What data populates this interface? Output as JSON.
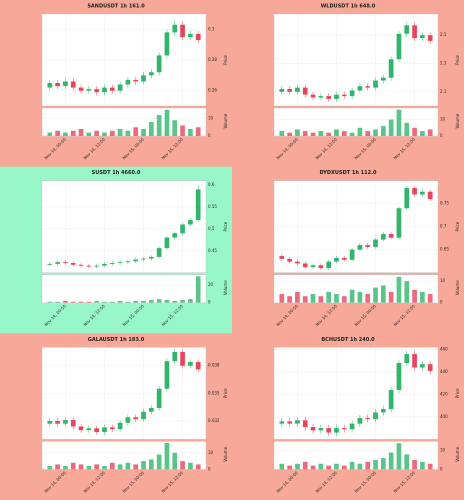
{
  "chart_data": [
    {
      "type": "candlestick",
      "title": "SANDUSDT 1h 161.0",
      "background": "#f7a898",
      "up_color": "#2fb66b",
      "down_color": "#e8455c",
      "ylabel": "Price",
      "y2label": "Volume",
      "open": [
        0.262,
        0.265,
        0.263,
        0.266,
        0.262,
        0.26,
        0.261,
        0.259,
        0.262,
        0.26,
        0.264,
        0.267,
        0.266,
        0.27,
        0.272,
        0.283,
        0.298,
        0.303,
        0.295,
        0.297
      ],
      "high": [
        0.267,
        0.267,
        0.268,
        0.268,
        0.264,
        0.263,
        0.263,
        0.264,
        0.264,
        0.266,
        0.269,
        0.269,
        0.272,
        0.274,
        0.285,
        0.3,
        0.306,
        0.305,
        0.299,
        0.299
      ],
      "low": [
        0.26,
        0.261,
        0.261,
        0.26,
        0.258,
        0.258,
        0.257,
        0.257,
        0.258,
        0.258,
        0.262,
        0.264,
        0.264,
        0.268,
        0.27,
        0.281,
        0.296,
        0.293,
        0.293,
        0.291
      ],
      "close": [
        0.265,
        0.263,
        0.266,
        0.262,
        0.26,
        0.261,
        0.259,
        0.262,
        0.26,
        0.264,
        0.267,
        0.266,
        0.27,
        0.272,
        0.283,
        0.298,
        0.303,
        0.295,
        0.297,
        0.293
      ],
      "volume": [
        2,
        3,
        2,
        3,
        4,
        2,
        3,
        2,
        3,
        4,
        3,
        5,
        4,
        8,
        12,
        15,
        9,
        6,
        4,
        5
      ],
      "xlim": [
        -1,
        20
      ],
      "xticks": [
        {
          "value": 2,
          "label": "Nov 14, 00:00"
        },
        {
          "value": 7,
          "label": "Nov 14, 12:00"
        },
        {
          "value": 12,
          "label": "Nov 15, 00:00"
        },
        {
          "value": 17,
          "label": "Nov 15, 12:00"
        }
      ],
      "ylim": [
        0.25,
        0.31
      ],
      "yticks": [
        0.26,
        0.28,
        0.3
      ],
      "y2lim": [
        0,
        16
      ],
      "y2ticks": [
        0,
        10
      ]
    },
    {
      "type": "candlestick",
      "title": "WLDUSDT 1h 648.0",
      "background": "#f7a898",
      "up_color": "#2fb66b",
      "down_color": "#e8455c",
      "ylabel": "Price",
      "y2label": "Volume",
      "open": [
        2.1,
        2.12,
        2.1,
        2.13,
        2.08,
        2.06,
        2.07,
        2.05,
        2.08,
        2.07,
        2.11,
        2.14,
        2.13,
        2.18,
        2.2,
        2.33,
        2.51,
        2.57,
        2.48,
        2.5
      ],
      "high": [
        2.14,
        2.14,
        2.15,
        2.15,
        2.1,
        2.09,
        2.09,
        2.1,
        2.1,
        2.13,
        2.16,
        2.16,
        2.2,
        2.22,
        2.35,
        2.53,
        2.59,
        2.59,
        2.52,
        2.52
      ],
      "low": [
        2.08,
        2.08,
        2.08,
        2.06,
        2.04,
        2.04,
        2.03,
        2.03,
        2.05,
        2.05,
        2.09,
        2.11,
        2.11,
        2.16,
        2.18,
        2.31,
        2.49,
        2.46,
        2.46,
        2.44
      ],
      "close": [
        2.12,
        2.1,
        2.13,
        2.08,
        2.06,
        2.07,
        2.05,
        2.08,
        2.07,
        2.11,
        2.14,
        2.13,
        2.18,
        2.2,
        2.33,
        2.51,
        2.57,
        2.48,
        2.5,
        2.46
      ],
      "volume": [
        3,
        2,
        4,
        3,
        2,
        3,
        2,
        4,
        3,
        2,
        5,
        3,
        4,
        6,
        10,
        16,
        8,
        5,
        3,
        4
      ],
      "xlim": [
        -1,
        20
      ],
      "xticks": [
        {
          "value": 2,
          "label": "Nov 14, 00:00"
        },
        {
          "value": 7,
          "label": "Nov 14, 12:00"
        },
        {
          "value": 12,
          "label": "Nov 15, 00:00"
        },
        {
          "value": 17,
          "label": "Nov 15, 12:00"
        }
      ],
      "ylim": [
        2.0,
        2.65
      ],
      "yticks": [
        2.1,
        2.3,
        2.5
      ],
      "y2lim": [
        0,
        17
      ],
      "y2ticks": [
        0,
        10
      ]
    },
    {
      "type": "candlestick",
      "title": "SUSDT 1h 4660.0",
      "background": "#98f7c9",
      "up_color": "#2fb66b",
      "down_color": "#e8455c",
      "ylabel": "Price",
      "y2label": "Volume",
      "open": [
        0.418,
        0.42,
        0.424,
        0.422,
        0.418,
        0.416,
        0.414,
        0.416,
        0.42,
        0.422,
        0.424,
        0.426,
        0.43,
        0.432,
        0.436,
        0.456,
        0.48,
        0.49,
        0.51,
        0.52
      ],
      "high": [
        0.424,
        0.428,
        0.428,
        0.426,
        0.422,
        0.42,
        0.42,
        0.424,
        0.426,
        0.428,
        0.43,
        0.434,
        0.436,
        0.44,
        0.46,
        0.484,
        0.494,
        0.514,
        0.524,
        0.6
      ],
      "low": [
        0.414,
        0.416,
        0.418,
        0.414,
        0.412,
        0.41,
        0.41,
        0.412,
        0.416,
        0.418,
        0.42,
        0.422,
        0.426,
        0.428,
        0.432,
        0.452,
        0.476,
        0.486,
        0.506,
        0.516
      ],
      "close": [
        0.42,
        0.424,
        0.422,
        0.418,
        0.416,
        0.414,
        0.416,
        0.42,
        0.422,
        0.424,
        0.426,
        0.43,
        0.432,
        0.436,
        0.456,
        0.48,
        0.49,
        0.51,
        0.52,
        0.59
      ],
      "volume": [
        1,
        1,
        2,
        1,
        1,
        1,
        2,
        1,
        1,
        2,
        1,
        2,
        2,
        3,
        4,
        3,
        2,
        3,
        4,
        30
      ],
      "xlim": [
        -1,
        20
      ],
      "xticks": [
        {
          "value": 2,
          "label": "Nov 14, 00:00"
        },
        {
          "value": 7,
          "label": "Nov 14, 12:00"
        },
        {
          "value": 12,
          "label": "Nov 15, 00:00"
        },
        {
          "value": 17,
          "label": "Nov 15, 12:00"
        }
      ],
      "ylim": [
        0.4,
        0.61
      ],
      "yticks": [
        0.45,
        0.5,
        0.55,
        0.6
      ],
      "y2lim": [
        0,
        32
      ],
      "y2ticks": [
        0,
        20
      ]
    },
    {
      "type": "candlestick",
      "title": "DYDXUSDT 1h 112.0",
      "background": "#f7a898",
      "up_color": "#2fb66b",
      "down_color": "#e8455c",
      "ylabel": "Price",
      "y2label": "Volume",
      "open": [
        0.636,
        0.63,
        0.624,
        0.62,
        0.612,
        0.616,
        0.61,
        0.624,
        0.632,
        0.628,
        0.65,
        0.66,
        0.656,
        0.672,
        0.684,
        0.676,
        0.74,
        0.784,
        0.77,
        0.776
      ],
      "high": [
        0.64,
        0.634,
        0.628,
        0.624,
        0.62,
        0.62,
        0.628,
        0.636,
        0.636,
        0.654,
        0.664,
        0.664,
        0.676,
        0.688,
        0.688,
        0.744,
        0.788,
        0.788,
        0.78,
        0.78
      ],
      "low": [
        0.626,
        0.62,
        0.616,
        0.608,
        0.608,
        0.606,
        0.606,
        0.62,
        0.624,
        0.624,
        0.646,
        0.652,
        0.652,
        0.668,
        0.672,
        0.672,
        0.736,
        0.766,
        0.766,
        0.756
      ],
      "close": [
        0.63,
        0.624,
        0.62,
        0.612,
        0.616,
        0.61,
        0.624,
        0.632,
        0.628,
        0.65,
        0.66,
        0.656,
        0.672,
        0.684,
        0.676,
        0.74,
        0.784,
        0.77,
        0.776,
        0.76
      ],
      "volume": [
        4,
        3,
        5,
        3,
        4,
        3,
        5,
        4,
        3,
        6,
        5,
        4,
        7,
        8,
        5,
        12,
        10,
        6,
        5,
        4
      ],
      "xlim": [
        -1,
        20
      ],
      "xticks": [
        {
          "value": 2,
          "label": "Nov 14, 00:00"
        },
        {
          "value": 7,
          "label": "Nov 14, 12:00"
        },
        {
          "value": 12,
          "label": "Nov 15, 00:00"
        },
        {
          "value": 17,
          "label": "Nov 15, 12:00"
        }
      ],
      "ylim": [
        0.6,
        0.8
      ],
      "yticks": [
        0.65,
        0.7,
        0.75
      ],
      "y2lim": [
        0,
        13
      ],
      "y2ticks": [
        0,
        10
      ]
    },
    {
      "type": "candlestick",
      "title": "GALAUSDT 1h 183.0",
      "background": "#f7a898",
      "up_color": "#2fb66b",
      "down_color": "#e8455c",
      "ylabel": "Price",
      "y2label": "Volume",
      "open": [
        0.0317,
        0.032,
        0.0317,
        0.0321,
        0.0314,
        0.031,
        0.0312,
        0.0308,
        0.0313,
        0.0311,
        0.0318,
        0.0324,
        0.0322,
        0.033,
        0.0334,
        0.0355,
        0.0385,
        0.0395,
        0.038,
        0.0384
      ],
      "high": [
        0.0323,
        0.0323,
        0.0324,
        0.0324,
        0.0317,
        0.0315,
        0.0315,
        0.0316,
        0.0316,
        0.0321,
        0.0327,
        0.0327,
        0.0333,
        0.0337,
        0.0358,
        0.0388,
        0.0398,
        0.0398,
        0.0387,
        0.0387
      ],
      "low": [
        0.0314,
        0.0314,
        0.0314,
        0.0311,
        0.0307,
        0.0307,
        0.0305,
        0.0305,
        0.0308,
        0.0308,
        0.0315,
        0.0319,
        0.0319,
        0.0327,
        0.0331,
        0.0352,
        0.0382,
        0.0377,
        0.0377,
        0.0373
      ],
      "close": [
        0.032,
        0.0317,
        0.0321,
        0.0314,
        0.031,
        0.0312,
        0.0308,
        0.0313,
        0.0311,
        0.0318,
        0.0324,
        0.0322,
        0.033,
        0.0334,
        0.0355,
        0.0385,
        0.0395,
        0.038,
        0.0384,
        0.0376
      ],
      "volume": [
        2,
        3,
        2,
        4,
        3,
        2,
        3,
        2,
        4,
        3,
        4,
        3,
        5,
        6,
        9,
        16,
        10,
        5,
        4,
        3
      ],
      "xlim": [
        -1,
        20
      ],
      "xticks": [
        {
          "value": 2,
          "label": "Nov 14, 00:00"
        },
        {
          "value": 7,
          "label": "Nov 14, 12:00"
        },
        {
          "value": 12,
          "label": "Nov 15, 00:00"
        },
        {
          "value": 17,
          "label": "Nov 15, 12:00"
        }
      ],
      "ylim": [
        0.03,
        0.04
      ],
      "yticks": [
        0.032,
        0.035,
        0.038
      ],
      "y2lim": [
        0,
        17
      ],
      "y2ticks": [
        0,
        10
      ]
    },
    {
      "type": "candlestick",
      "title": "BCHUSDT 1h 240.0",
      "background": "#f7a898",
      "up_color": "#2fb66b",
      "down_color": "#e8455c",
      "ylabel": "Price",
      "y2label": "Volume",
      "open": [
        394,
        396,
        394,
        397,
        391,
        388,
        390,
        386,
        390,
        389,
        394,
        399,
        398,
        404,
        407,
        424,
        448,
        456,
        444,
        447
      ],
      "high": [
        399,
        399,
        400,
        400,
        394,
        393,
        393,
        393,
        393,
        397,
        402,
        402,
        407,
        410,
        427,
        451,
        459,
        459,
        450,
        450
      ],
      "low": [
        391,
        391,
        391,
        388,
        385,
        385,
        383,
        383,
        386,
        386,
        391,
        395,
        395,
        401,
        404,
        421,
        445,
        441,
        441,
        438
      ],
      "close": [
        396,
        394,
        397,
        391,
        388,
        390,
        386,
        390,
        389,
        394,
        399,
        398,
        404,
        407,
        424,
        448,
        456,
        444,
        447,
        441
      ],
      "volume": [
        3,
        2,
        3,
        4,
        2,
        3,
        2,
        3,
        2,
        4,
        3,
        4,
        5,
        6,
        9,
        14,
        8,
        5,
        4,
        3
      ],
      "xlim": [
        -1,
        20
      ],
      "xticks": [
        {
          "value": 2,
          "label": "Nov 14, 00:00"
        },
        {
          "value": 7,
          "label": "Nov 14, 12:00"
        },
        {
          "value": 12,
          "label": "Nov 15, 00:00"
        },
        {
          "value": 17,
          "label": "Nov 15, 12:00"
        }
      ],
      "ylim": [
        380,
        462
      ],
      "yticks": [
        400,
        420,
        440,
        460
      ],
      "y2lim": [
        0,
        15
      ],
      "y2ticks": [
        0,
        10
      ]
    }
  ]
}
